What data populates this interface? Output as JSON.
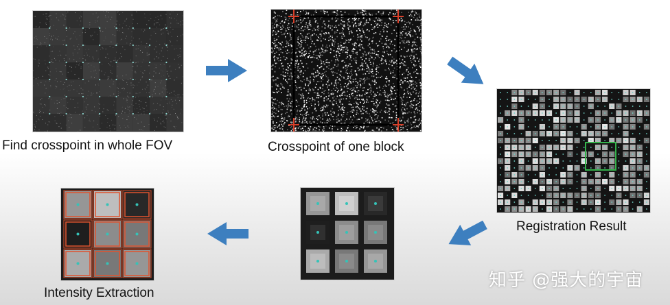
{
  "steps": [
    {
      "id": "whole-fov",
      "caption": "Find crosspoint in whole FOV"
    },
    {
      "id": "one-block",
      "caption": "Crosspoint of one block"
    },
    {
      "id": "registration",
      "caption": "Registration Result"
    },
    {
      "id": "zoomed",
      "caption": ""
    },
    {
      "id": "intensity",
      "caption": "Intensity Extraction"
    }
  ],
  "watermark": "知乎 @强大的宇宙",
  "colors": {
    "arrow": "#3d7fbf",
    "crosspoint_marker": "#d8402a",
    "selection_box": "#33b24a",
    "extraction_box": "#e0532f",
    "center_dot": "#35c3b8"
  }
}
